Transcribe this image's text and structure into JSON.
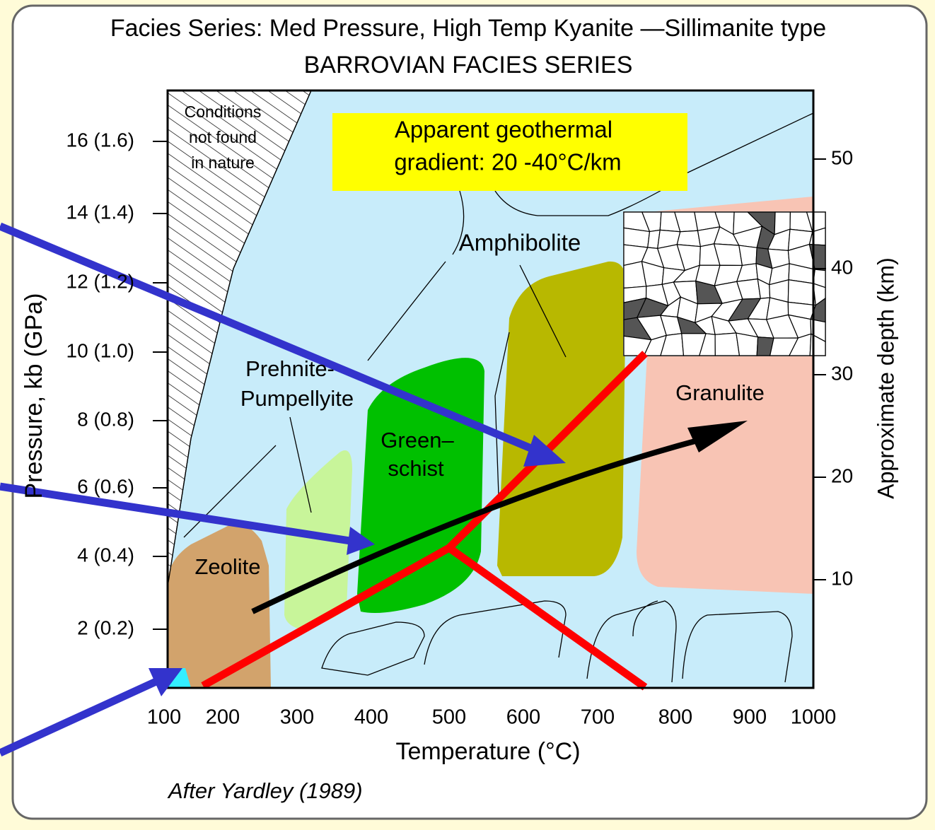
{
  "title": "Facies Series: Med Pressure, High Temp Kyanite —Sillimanite type",
  "subtitle": "BARROVIAN FACIES SERIES",
  "x_axis": {
    "label": "Temperature (°C)",
    "ticks": [
      "100",
      "200",
      "300",
      "400",
      "500",
      "600",
      "700",
      "800",
      "900",
      "1000"
    ]
  },
  "y_axis": {
    "label": "Pressure, kb (GPa)",
    "ticks": [
      "16 (1.6)",
      "14 (1.4)",
      "12 (1.2)",
      "10 (1.0)",
      "8 (0.8)",
      "6 (0.6)",
      "4 (0.4)",
      "2 (0.2)"
    ]
  },
  "y2_axis": {
    "label": "Approximate depth (km)",
    "ticks": [
      "50",
      "40",
      "30",
      "20",
      "10"
    ]
  },
  "unnatural": [
    "Conditions",
    "not found",
    "in nature"
  ],
  "gradient_box": [
    "Apparent geothermal",
    "gradient: 20 -40°C/km"
  ],
  "facies": {
    "amphibolite": "Amphibolite",
    "prehnite": [
      "Prehnite-",
      "Pumpellyite"
    ],
    "greenschist": [
      "Green–",
      "schist"
    ],
    "zeolite": "Zeolite",
    "granulite": "Granulite"
  },
  "credit": "After Yardley (1989)"
}
